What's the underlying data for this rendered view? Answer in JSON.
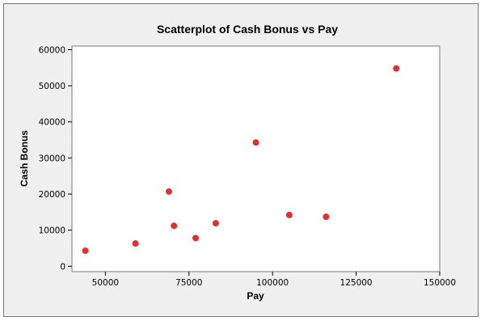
{
  "chart_data": {
    "type": "scatter",
    "title": "Scatterplot of Cash Bonus vs Pay",
    "xlabel": "Pay",
    "ylabel": "Cash Bonus",
    "xlim": [
      40000,
      150000
    ],
    "ylim": [
      -1500,
      61000
    ],
    "x_ticks": [
      50000,
      75000,
      100000,
      125000,
      150000
    ],
    "y_ticks": [
      0,
      10000,
      20000,
      30000,
      40000,
      50000,
      60000
    ],
    "grid": false,
    "legend": "none",
    "point_color": "#e03030",
    "points": [
      {
        "x": 44000,
        "y": 4300
      },
      {
        "x": 59000,
        "y": 6300
      },
      {
        "x": 69000,
        "y": 20700
      },
      {
        "x": 70500,
        "y": 11200
      },
      {
        "x": 77000,
        "y": 7800
      },
      {
        "x": 83000,
        "y": 11900
      },
      {
        "x": 95000,
        "y": 34300
      },
      {
        "x": 105000,
        "y": 14200
      },
      {
        "x": 116000,
        "y": 13700
      },
      {
        "x": 137000,
        "y": 54800
      }
    ]
  }
}
